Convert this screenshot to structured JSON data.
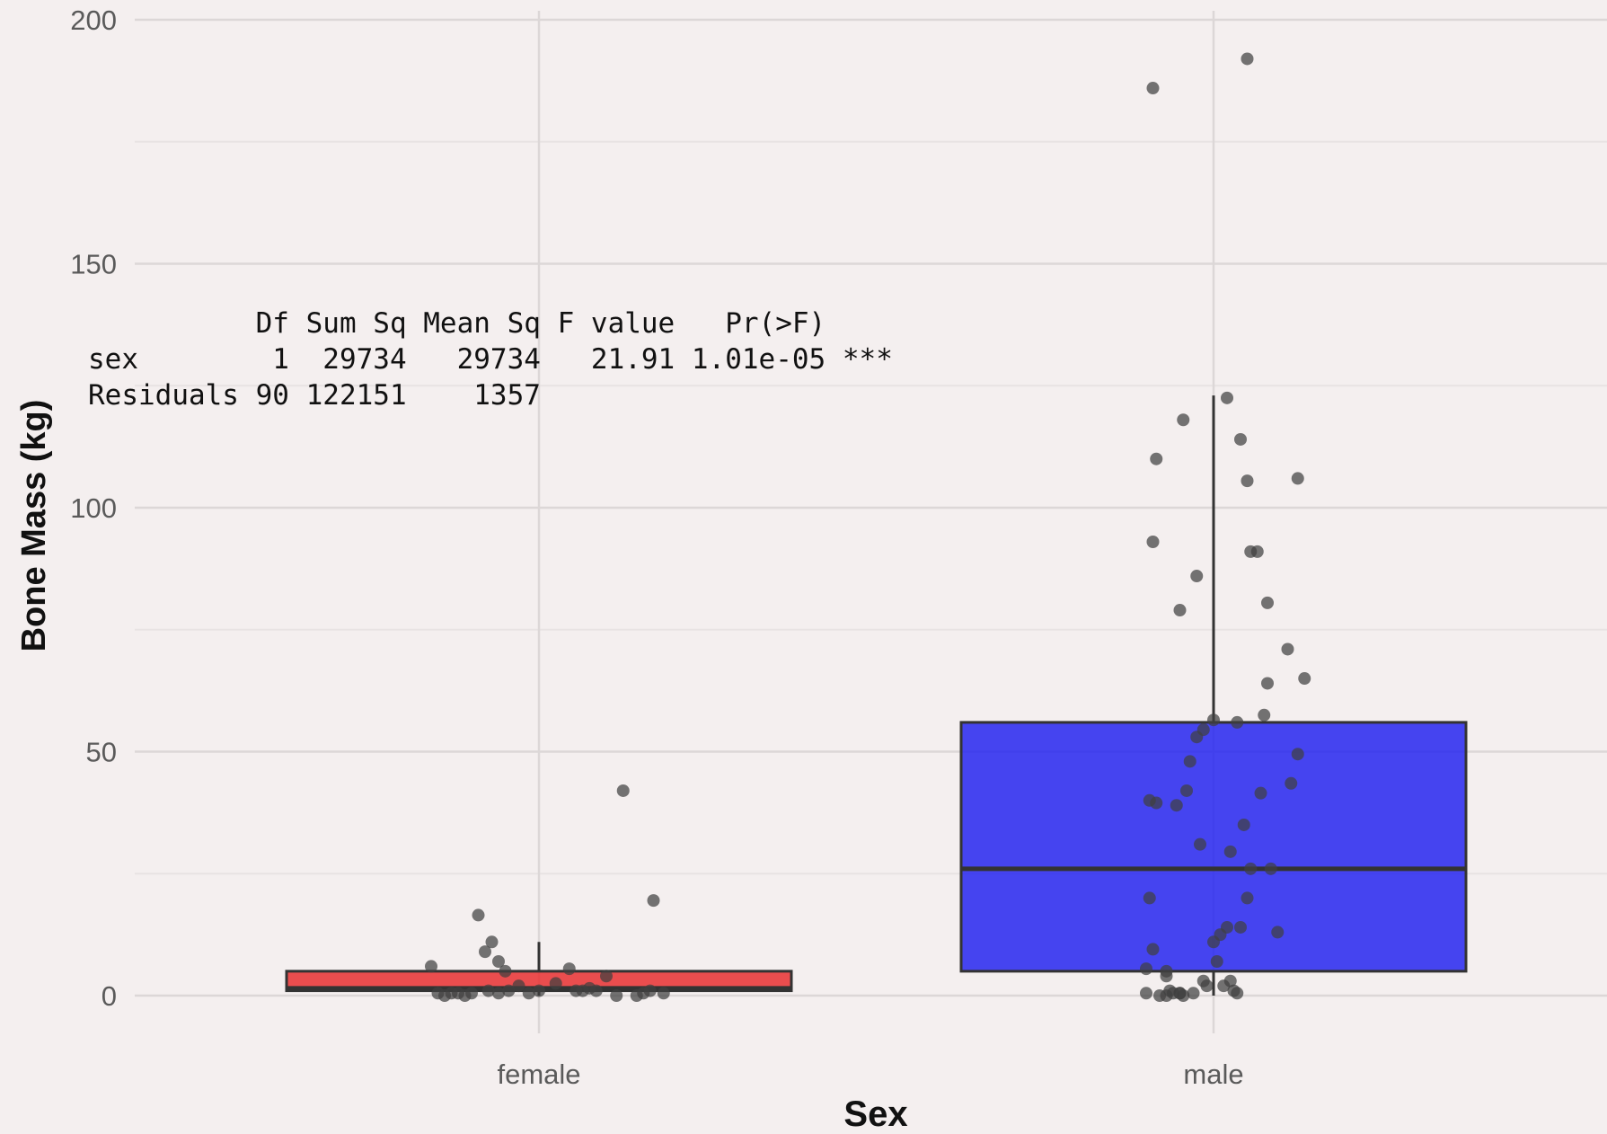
{
  "chart_data": {
    "type": "box",
    "title": "",
    "xlabel": "Sex",
    "ylabel": "Bone Mass (kg)",
    "ylim": [
      -15,
      200
    ],
    "yticks": [
      0,
      50,
      100,
      150,
      200
    ],
    "grid": true,
    "legend": "none",
    "categories": [
      "female",
      "male"
    ],
    "boxes": [
      {
        "category": "female",
        "q1": 1,
        "median": 1.5,
        "q3": 5,
        "whisker_low": 0,
        "whisker_high": 11,
        "color": "#e8292b"
      },
      {
        "category": "male",
        "q1": 5,
        "median": 26,
        "q3": 56,
        "whisker_low": 0,
        "whisker_high": 123,
        "color": "#1f1ff0"
      }
    ],
    "points": [
      {
        "category": "female",
        "x": [
          -0.28,
          -0.32,
          -0.3,
          -0.26,
          -0.24,
          -0.2,
          -0.18,
          -0.16,
          -0.15,
          -0.12,
          -0.09,
          -0.06,
          -0.03,
          0.0,
          0.05,
          0.09,
          0.11,
          0.13,
          0.15,
          0.17,
          0.2,
          0.23,
          0.25,
          0.29,
          0.31,
          0.33,
          0.34,
          0.37,
          -0.14,
          -0.12,
          -0.1,
          -0.22
        ],
        "y": [
          0,
          6,
          0.5,
          0.5,
          0.5,
          0.5,
          16.5,
          9,
          1,
          0.5,
          1,
          2,
          0.5,
          1,
          2.5,
          5.5,
          1,
          1,
          1.5,
          1,
          4,
          0,
          42,
          0,
          0.5,
          1,
          19.5,
          0.5,
          11,
          7,
          5,
          0
        ]
      },
      {
        "category": "male",
        "x": [
          -0.2,
          -0.16,
          -0.12,
          -0.13,
          -0.09,
          -0.1,
          -0.14,
          -0.19,
          -0.2,
          -0.18,
          -0.14,
          -0.14,
          -0.11,
          -0.08,
          -0.07,
          -0.05,
          -0.03,
          0.0,
          -0.04,
          -0.06,
          -0.1,
          -0.02,
          -0.03,
          0.02,
          0.01,
          0.0,
          0.04,
          0.05,
          0.06,
          0.07,
          0.03,
          0.05,
          0.09,
          0.1,
          0.11,
          0.08,
          0.07,
          0.14,
          0.15,
          0.16,
          0.17,
          0.19,
          0.23,
          0.25,
          -0.09,
          -0.18,
          -0.17,
          -0.19,
          -0.05,
          0.1,
          0.13
        ],
        "y": [
          0.5,
          0,
          0.5,
          1,
          0,
          0.5,
          0,
          20,
          5.5,
          9.5,
          5,
          4,
          39,
          42,
          48,
          53,
          54.5,
          56.5,
          31,
          0.5,
          0.5,
          2,
          3,
          12.5,
          7,
          11,
          14,
          29.5,
          1,
          0.5,
          2,
          3,
          35,
          20,
          26,
          14,
          56,
          41.5,
          57.5,
          64,
          26,
          13,
          43.5,
          49.5,
          118,
          93,
          39.5,
          40,
          86,
          105.5,
          91
        ]
      },
      {
        "category": "male",
        "x": [
          -0.18,
          -0.17,
          -0.1,
          0.04,
          0.08,
          0.11,
          0.16,
          0.22,
          0.27,
          0.25,
          0.1
        ],
        "y": [
          186,
          110,
          79,
          122.5,
          114,
          91,
          80.5,
          71,
          65,
          106,
          192
        ]
      }
    ],
    "annotation_table": {
      "header": "          Df Sum Sq Mean Sq F value   Pr(>F)    ",
      "rows": [
        "sex        1  29734   29734   21.91 1.01e-05 ***",
        "Residuals 90 122151    1357                   "
      ]
    }
  },
  "colors": {
    "background": "#f3eeee",
    "panel": "#f5f0f0",
    "grid_major": "#dcd7d7",
    "grid_minor": "#e8e3e3",
    "female_fill": "#e8292b",
    "male_fill": "#1f1ff0",
    "point": "#404040"
  }
}
